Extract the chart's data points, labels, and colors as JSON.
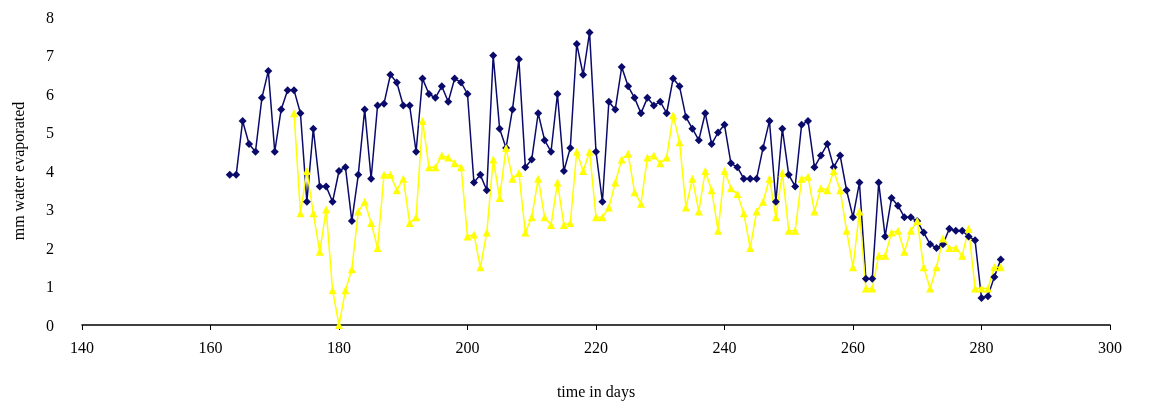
{
  "chart_data": {
    "type": "line",
    "xlabel": "time in days",
    "ylabel": "mm water evaporated",
    "x": [
      163,
      164,
      165,
      166,
      167,
      168,
      169,
      170,
      171,
      172,
      173,
      174,
      175,
      176,
      177,
      178,
      179,
      180,
      181,
      182,
      183,
      184,
      185,
      186,
      187,
      188,
      189,
      190,
      191,
      192,
      193,
      194,
      195,
      196,
      197,
      198,
      199,
      200,
      201,
      202,
      203,
      204,
      205,
      206,
      207,
      208,
      209,
      210,
      211,
      212,
      213,
      214,
      215,
      216,
      217,
      218,
      219,
      220,
      221,
      222,
      223,
      224,
      225,
      226,
      227,
      228,
      229,
      230,
      231,
      232,
      233,
      234,
      235,
      236,
      237,
      238,
      239,
      240,
      241,
      242,
      243,
      244,
      245,
      246,
      247,
      248,
      249,
      250,
      251,
      252,
      253,
      254,
      255,
      256,
      257,
      258,
      259,
      260,
      261,
      262,
      263,
      264,
      265,
      266,
      267,
      268,
      269,
      270,
      271,
      272,
      273,
      274,
      275,
      276,
      277,
      278,
      279,
      280,
      281,
      282,
      283
    ],
    "series": [
      {
        "color": "#0a0a6b",
        "marker": "diamond",
        "values": [
          3.9,
          3.9,
          5.3,
          4.7,
          4.5,
          5.9,
          6.6,
          4.5,
          5.6,
          6.1,
          6.1,
          5.5,
          3.2,
          5.1,
          3.6,
          3.6,
          3.2,
          4.0,
          4.1,
          2.7,
          3.9,
          5.6,
          3.8,
          5.7,
          5.75,
          6.5,
          6.3,
          5.7,
          5.7,
          4.5,
          6.4,
          6.0,
          5.9,
          6.2,
          5.8,
          6.4,
          6.3,
          6.0,
          3.7,
          3.9,
          3.5,
          7.0,
          5.1,
          4.6,
          5.6,
          6.9,
          4.1,
          4.3,
          5.5,
          4.8,
          4.5,
          6.0,
          4.0,
          4.6,
          7.3,
          6.5,
          7.6,
          4.5,
          3.2,
          5.8,
          5.6,
          6.7,
          6.2,
          5.9,
          5.5,
          5.9,
          5.7,
          5.8,
          5.5,
          6.4,
          6.2,
          5.4,
          5.1,
          4.8,
          5.5,
          4.7,
          5.0,
          5.2,
          4.2,
          4.1,
          3.8,
          3.8,
          3.8,
          4.6,
          5.3,
          3.2,
          5.1,
          3.9,
          3.6,
          5.2,
          5.3,
          4.1,
          4.4,
          4.7,
          4.1,
          4.4,
          3.5,
          2.8,
          3.7,
          1.2,
          1.2,
          3.7,
          2.3,
          3.3,
          3.1,
          2.8,
          2.8,
          2.7,
          2.4,
          2.1,
          2.0,
          2.1,
          2.5,
          2.45,
          2.45,
          2.3,
          2.2,
          0.7,
          0.75,
          1.25,
          1.7
        ]
      },
      {
        "color": "#ffff00",
        "marker": "triangle",
        "values": [
          null,
          null,
          null,
          null,
          null,
          null,
          null,
          null,
          null,
          null,
          5.5,
          2.9,
          4.0,
          2.9,
          1.9,
          3.0,
          0.9,
          0,
          0.9,
          1.45,
          2.95,
          3.2,
          2.65,
          2.0,
          3.9,
          3.9,
          3.5,
          3.8,
          2.65,
          2.8,
          5.3,
          4.1,
          4.1,
          4.4,
          4.35,
          4.2,
          4.1,
          2.3,
          2.35,
          1.5,
          2.4,
          4.3,
          3.3,
          4.6,
          3.8,
          3.95,
          2.4,
          2.8,
          3.8,
          2.8,
          2.6,
          3.7,
          2.6,
          2.65,
          4.5,
          4.0,
          4.5,
          2.8,
          2.8,
          3.05,
          3.7,
          4.3,
          4.45,
          3.45,
          3.15,
          4.35,
          4.4,
          4.2,
          4.35,
          5.45,
          4.75,
          3.05,
          3.8,
          2.95,
          4.0,
          3.5,
          2.45,
          4.0,
          3.55,
          3.4,
          2.9,
          2.0,
          2.95,
          3.2,
          3.8,
          2.8,
          3.95,
          2.45,
          2.45,
          3.8,
          3.85,
          2.95,
          3.55,
          3.5,
          4.0,
          3.5,
          2.45,
          1.5,
          2.95,
          0.95,
          0.95,
          1.8,
          1.8,
          2.4,
          2.45,
          1.9,
          2.45,
          2.7,
          1.5,
          0.95,
          1.5,
          2.25,
          2.0,
          2.0,
          1.8,
          2.5,
          0.95,
          0.95,
          0.95,
          1.5,
          1.5
        ]
      }
    ],
    "xlim": [
      140,
      300
    ],
    "xticks": [
      140,
      160,
      180,
      200,
      220,
      240,
      260,
      280,
      300
    ],
    "ylim": [
      0,
      8
    ],
    "yticks": [
      0,
      1,
      2,
      3,
      4,
      5,
      6,
      7,
      8
    ],
    "grid": false,
    "line_style": "solid"
  }
}
